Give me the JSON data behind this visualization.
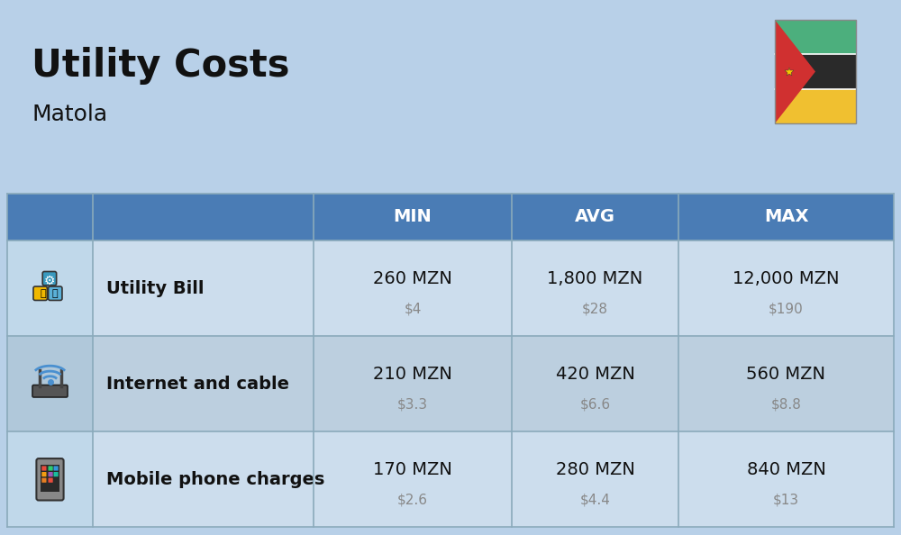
{
  "title": "Utility Costs",
  "subtitle": "Matola",
  "background_color": "#b8d0e8",
  "header_bg_color": "#4a7cb5",
  "header_text_color": "#ffffff",
  "row_bg_color_even": "#ccdded",
  "row_bg_color_odd": "#bccfdf",
  "icon_col_bg_even": "#c0d8ea",
  "icon_col_bg_odd": "#b0c8da",
  "col_headers": [
    "MIN",
    "AVG",
    "MAX"
  ],
  "rows": [
    {
      "label": "Utility Bill",
      "min_mzn": "260 MZN",
      "min_usd": "$4",
      "avg_mzn": "1,800 MZN",
      "avg_usd": "$28",
      "max_mzn": "12,000 MZN",
      "max_usd": "$190"
    },
    {
      "label": "Internet and cable",
      "min_mzn": "210 MZN",
      "min_usd": "$3.3",
      "avg_mzn": "420 MZN",
      "avg_usd": "$6.6",
      "max_mzn": "560 MZN",
      "max_usd": "$8.8"
    },
    {
      "label": "Mobile phone charges",
      "min_mzn": "170 MZN",
      "min_usd": "$2.6",
      "avg_mzn": "280 MZN",
      "avg_usd": "$4.4",
      "max_mzn": "840 MZN",
      "max_usd": "$13"
    }
  ],
  "title_fontsize": 30,
  "subtitle_fontsize": 18,
  "header_fontsize": 14,
  "label_fontsize": 14,
  "value_fontsize": 14,
  "usd_fontsize": 11,
  "separator_color": "#8aaabb",
  "flag_green": "#4caf7d",
  "flag_black": "#2a2a2a",
  "flag_yellow": "#f0c030",
  "flag_red": "#d03030"
}
